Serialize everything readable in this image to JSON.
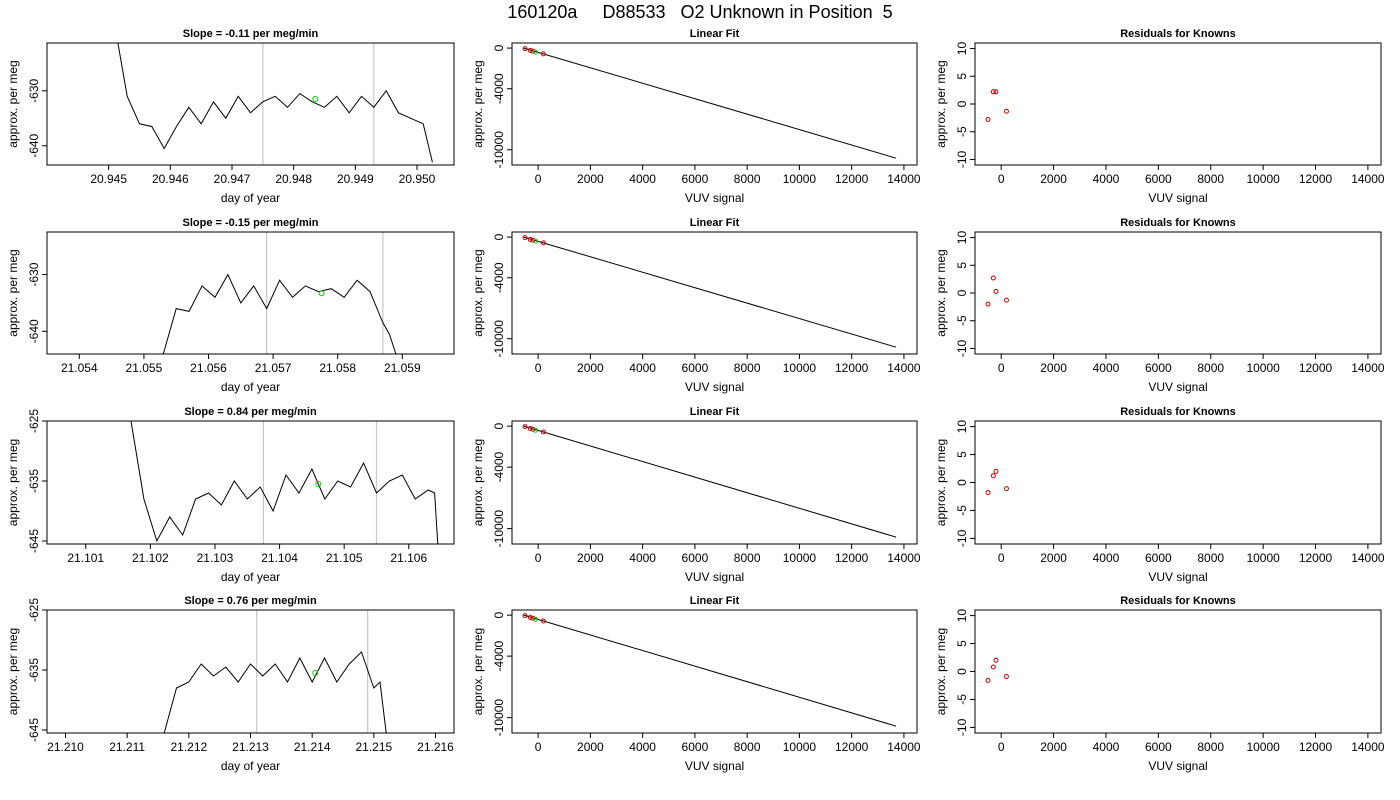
{
  "figure": {
    "title": "160120a     D88533   O2 Unknown in Position  5"
  },
  "chart_data": [
    {
      "type": "line",
      "title": "Slope =  -0.11  per meg/min",
      "xlabel": "day of year",
      "ylabel": "approx. per meg",
      "xlim": [
        20.944,
        20.9506
      ],
      "ylim": [
        -643.5,
        -621.3
      ],
      "xticks": [
        "20.945",
        "20.946",
        "20.947",
        "20.948",
        "20.949",
        "20.950"
      ],
      "yticks": [
        "-630",
        "-640"
      ],
      "vlines": [
        20.9475,
        20.9493
      ],
      "marker": {
        "x": 20.94835,
        "y": -631.5,
        "color": "#00cc00"
      },
      "series_color": "#000000",
      "x": [
        20.94515,
        20.9453,
        20.9455,
        20.9457,
        20.9459,
        20.9461,
        20.9463,
        20.9465,
        20.9467,
        20.9469,
        20.9471,
        20.9473,
        20.9475,
        20.9477,
        20.9479,
        20.9481,
        20.9483,
        20.9485,
        20.9487,
        20.9489,
        20.9491,
        20.9493,
        20.9495,
        20.9497,
        20.9499,
        20.9501,
        20.95025
      ],
      "y": [
        -621.3,
        -631,
        -636,
        -636.5,
        -640.5,
        -636.5,
        -633,
        -636,
        -632,
        -635,
        -631,
        -634,
        -632,
        -631,
        -633,
        -630.5,
        -632,
        -633,
        -631,
        -634,
        -631,
        -633,
        -630,
        -634,
        -635,
        -636,
        -643
      ]
    },
    {
      "type": "line",
      "title": "Linear Fit",
      "xlabel": "VUV signal",
      "ylabel": "approx. per meg",
      "xlim": [
        -1000,
        14500
      ],
      "ylim": [
        -11500,
        500
      ],
      "xticks": [
        "0",
        "2000",
        "4000",
        "6000",
        "8000",
        "10000",
        "12000",
        "14000"
      ],
      "yticks": [
        "0",
        "-4000",
        "-10000"
      ],
      "fit_line": {
        "x": [
          -550,
          13700
        ],
        "y": [
          0,
          -10830
        ]
      },
      "knowns": {
        "x": [
          -500,
          -300,
          -200,
          200
        ],
        "y": [
          -50,
          -230,
          -300,
          -570
        ],
        "color": "#cc0000"
      },
      "unknown": {
        "x": -100,
        "y": -400,
        "color": "#00cc00"
      }
    },
    {
      "type": "scatter",
      "title": "Residuals for Knowns",
      "xlabel": "VUV signal",
      "ylabel": "approx. per meg",
      "xlim": [
        -1000,
        14500
      ],
      "ylim": [
        -11,
        11
      ],
      "xticks": [
        "0",
        "2000",
        "4000",
        "6000",
        "8000",
        "10000",
        "12000",
        "14000"
      ],
      "yticks": [
        "-10",
        "-5",
        "0",
        "5",
        "10"
      ],
      "points": {
        "x": [
          -500,
          -300,
          -200,
          200
        ],
        "y": [
          -2.8,
          2.2,
          2.2,
          -1.3
        ],
        "color": "#cc0000"
      }
    },
    {
      "type": "line",
      "title": "Slope =  -0.15  per meg/min",
      "xlabel": "day of year",
      "ylabel": "approx. per meg",
      "xlim": [
        21.0535,
        21.0598
      ],
      "ylim": [
        -644,
        -622.5
      ],
      "xticks": [
        "21.054",
        "21.055",
        "21.056",
        "21.057",
        "21.058",
        "21.059"
      ],
      "yticks": [
        "-630",
        "-640"
      ],
      "vlines": [
        21.0569,
        21.0587
      ],
      "marker": {
        "x": 21.05775,
        "y": -633.3,
        "color": "#00cc00"
      },
      "series_color": "#000000",
      "x": [
        21.0553,
        21.0555,
        21.0557,
        21.0559,
        21.0561,
        21.0563,
        21.0565,
        21.0567,
        21.0569,
        21.0571,
        21.0573,
        21.0575,
        21.0577,
        21.0579,
        21.0581,
        21.0583,
        21.0585,
        21.0587,
        21.0588,
        21.0589
      ],
      "y": [
        -644,
        -636,
        -636.5,
        -632,
        -634,
        -630,
        -635,
        -632,
        -636,
        -631,
        -634,
        -632,
        -633,
        -632.5,
        -634,
        -631,
        -633,
        -638.5,
        -640.5,
        -644
      ]
    },
    {
      "type": "line",
      "title": "Linear Fit",
      "xlabel": "VUV signal",
      "ylabel": "approx. per meg",
      "xlim": [
        -1000,
        14500
      ],
      "ylim": [
        -11500,
        500
      ],
      "xticks": [
        "0",
        "2000",
        "4000",
        "6000",
        "8000",
        "10000",
        "12000",
        "14000"
      ],
      "yticks": [
        "0",
        "-4000",
        "-10000"
      ],
      "fit_line": {
        "x": [
          -550,
          13700
        ],
        "y": [
          0,
          -10830
        ]
      },
      "knowns": {
        "x": [
          -500,
          -300,
          -200,
          200
        ],
        "y": [
          -50,
          -230,
          -300,
          -570
        ],
        "color": "#cc0000"
      },
      "unknown": {
        "x": -100,
        "y": -400,
        "color": "#00cc00"
      }
    },
    {
      "type": "scatter",
      "title": "Residuals for Knowns",
      "xlabel": "VUV signal",
      "ylabel": "approx. per meg",
      "xlim": [
        -1000,
        14500
      ],
      "ylim": [
        -11,
        11
      ],
      "xticks": [
        "0",
        "2000",
        "4000",
        "6000",
        "8000",
        "10000",
        "12000",
        "14000"
      ],
      "yticks": [
        "-10",
        "-5",
        "0",
        "5",
        "10"
      ],
      "points": {
        "x": [
          -500,
          -300,
          -200,
          200
        ],
        "y": [
          -2,
          2.7,
          0.3,
          -1.3
        ],
        "color": "#cc0000"
      }
    },
    {
      "type": "line",
      "title": "Slope =  0.84  per meg/min",
      "xlabel": "day of year",
      "ylabel": "approx. per meg",
      "xlim": [
        21.1004,
        21.1067
      ],
      "ylim": [
        -645.5,
        -625
      ],
      "xticks": [
        "21.101",
        "21.102",
        "21.103",
        "21.104",
        "21.105",
        "21.106"
      ],
      "yticks": [
        "-625",
        "-635",
        "-645"
      ],
      "vlines": [
        21.10375,
        21.1055
      ],
      "marker": {
        "x": 21.1046,
        "y": -635.5,
        "color": "#00cc00"
      },
      "series_color": "#000000",
      "x": [
        21.1017,
        21.1019,
        21.1021,
        21.1023,
        21.1025,
        21.1027,
        21.1029,
        21.1031,
        21.1033,
        21.1035,
        21.1037,
        21.1039,
        21.1041,
        21.1043,
        21.1045,
        21.1047,
        21.1049,
        21.1051,
        21.1053,
        21.1055,
        21.1057,
        21.1059,
        21.1061,
        21.1063,
        21.1064,
        21.10645
      ],
      "y": [
        -625,
        -638,
        -645,
        -641,
        -644,
        -638,
        -637,
        -639,
        -635,
        -638,
        -636,
        -640,
        -634,
        -637,
        -633,
        -638,
        -635,
        -636,
        -632,
        -637,
        -635,
        -634,
        -638,
        -636.5,
        -637,
        -645.5
      ]
    },
    {
      "type": "line",
      "title": "Linear Fit",
      "xlabel": "VUV signal",
      "ylabel": "approx. per meg",
      "xlim": [
        -1000,
        14500
      ],
      "ylim": [
        -11500,
        500
      ],
      "xticks": [
        "0",
        "2000",
        "4000",
        "6000",
        "8000",
        "10000",
        "12000",
        "14000"
      ],
      "yticks": [
        "0",
        "-4000",
        "-10000"
      ],
      "fit_line": {
        "x": [
          -550,
          13700
        ],
        "y": [
          0,
          -10830
        ]
      },
      "knowns": {
        "x": [
          -500,
          -300,
          -200,
          200
        ],
        "y": [
          -50,
          -230,
          -300,
          -570
        ],
        "color": "#cc0000"
      },
      "unknown": {
        "x": -100,
        "y": -400,
        "color": "#00cc00"
      }
    },
    {
      "type": "scatter",
      "title": "Residuals for Knowns",
      "xlabel": "VUV signal",
      "ylabel": "approx. per meg",
      "xlim": [
        -1000,
        14500
      ],
      "ylim": [
        -11,
        11
      ],
      "xticks": [
        "0",
        "2000",
        "4000",
        "6000",
        "8000",
        "10000",
        "12000",
        "14000"
      ],
      "yticks": [
        "-10",
        "-5",
        "0",
        "5",
        "10"
      ],
      "points": {
        "x": [
          -500,
          -300,
          -200,
          200
        ],
        "y": [
          -1.8,
          1.2,
          2,
          -1.1
        ],
        "color": "#cc0000"
      }
    },
    {
      "type": "line",
      "title": "Slope =  0.76  per meg/min",
      "xlabel": "day of year",
      "ylabel": "approx. per meg",
      "xlim": [
        21.2097,
        21.2163
      ],
      "ylim": [
        -645.5,
        -625
      ],
      "xticks": [
        "21.210",
        "21.211",
        "21.212",
        "21.213",
        "21.214",
        "21.215",
        "21.216"
      ],
      "yticks": [
        "-625",
        "-635",
        "-645"
      ],
      "vlines": [
        21.2131,
        21.2149
      ],
      "marker": {
        "x": 21.21405,
        "y": -635.5,
        "color": "#00cc00"
      },
      "series_color": "#000000",
      "x": [
        21.2116,
        21.2118,
        21.212,
        21.2122,
        21.2124,
        21.2126,
        21.2128,
        21.213,
        21.2132,
        21.2134,
        21.2136,
        21.2138,
        21.214,
        21.2142,
        21.2144,
        21.2146,
        21.2148,
        21.215,
        21.2151,
        21.2152
      ],
      "y": [
        -645.5,
        -638,
        -637,
        -634,
        -636,
        -634.5,
        -637,
        -634,
        -636,
        -634,
        -637,
        -633,
        -637,
        -633,
        -637,
        -634,
        -632,
        -638,
        -637,
        -645.5
      ]
    },
    {
      "type": "line",
      "title": "Linear Fit",
      "xlabel": "VUV signal",
      "ylabel": "approx. per meg",
      "xlim": [
        -1000,
        14500
      ],
      "ylim": [
        -11500,
        500
      ],
      "xticks": [
        "0",
        "2000",
        "4000",
        "6000",
        "8000",
        "10000",
        "12000",
        "14000"
      ],
      "yticks": [
        "0",
        "-4000",
        "-10000"
      ],
      "fit_line": {
        "x": [
          -550,
          13700
        ],
        "y": [
          0,
          -10830
        ]
      },
      "knowns": {
        "x": [
          -500,
          -300,
          -200,
          200
        ],
        "y": [
          -50,
          -230,
          -300,
          -570
        ],
        "color": "#cc0000"
      },
      "unknown": {
        "x": -100,
        "y": -400,
        "color": "#00cc00"
      }
    },
    {
      "type": "scatter",
      "title": "Residuals for Knowns",
      "xlabel": "VUV signal",
      "ylabel": "approx. per meg",
      "xlim": [
        -1000,
        14500
      ],
      "ylim": [
        -11,
        11
      ],
      "xticks": [
        "0",
        "2000",
        "4000",
        "6000",
        "8000",
        "10000",
        "12000",
        "14000"
      ],
      "yticks": [
        "-10",
        "-5",
        "0",
        "5",
        "10"
      ],
      "points": {
        "x": [
          -500,
          -300,
          -200,
          200
        ],
        "y": [
          -1.6,
          0.8,
          2,
          -0.9
        ],
        "color": "#cc0000"
      }
    }
  ]
}
